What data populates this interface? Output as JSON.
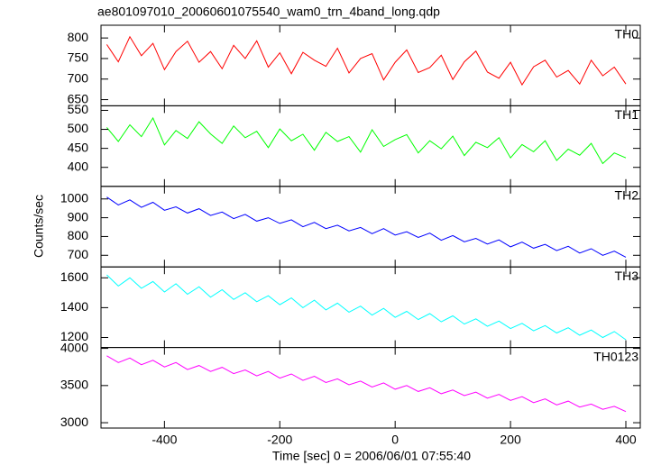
{
  "chart_data": {
    "type": "line",
    "title": "ae801097010_20060601075540_wam0_trn_4band_long.qdp",
    "xlabel": "Time [sec] 0 = 2006/06/01 07:55:40",
    "ylabel": "Counts/sec",
    "xlim": [
      -510,
      425
    ],
    "xticks": [
      -400,
      -200,
      0,
      200,
      400
    ],
    "x": [
      -500,
      -480,
      -460,
      -440,
      -420,
      -400,
      -380,
      -360,
      -340,
      -320,
      -300,
      -280,
      -260,
      -240,
      -220,
      -200,
      -180,
      -160,
      -140,
      -120,
      -100,
      -80,
      -60,
      -40,
      -20,
      0,
      20,
      40,
      60,
      80,
      100,
      120,
      140,
      160,
      180,
      200,
      220,
      240,
      260,
      280,
      300,
      320,
      340,
      360,
      380,
      400
    ],
    "series": [
      {
        "name": "TH0",
        "color": "#ff0000",
        "ylim": [
          635,
          831
        ],
        "yticks": [
          650,
          700,
          750,
          800
        ],
        "values": [
          784,
          742,
          803,
          757,
          787,
          723,
          767,
          792,
          741,
          767,
          725,
          782,
          750,
          793,
          729,
          764,
          713,
          765,
          746,
          731,
          775,
          715,
          750,
          762,
          698,
          741,
          771,
          716,
          728,
          758,
          699,
          742,
          768,
          717,
          702,
          741,
          686,
          730,
          746,
          705,
          721,
          688,
          746,
          708,
          729,
          688
        ]
      },
      {
        "name": "TH1",
        "color": "#00ff00",
        "ylim": [
          350,
          562
        ],
        "yticks": [
          400,
          450,
          500,
          550
        ],
        "values": [
          505,
          468,
          512,
          481,
          530,
          459,
          497,
          476,
          520,
          488,
          463,
          509,
          478,
          495,
          452,
          501,
          470,
          487,
          445,
          492,
          468,
          481,
          440,
          499,
          455,
          473,
          486,
          438,
          470,
          449,
          482,
          431,
          466,
          452,
          478,
          425,
          460,
          441,
          470,
          418,
          448,
          432,
          463,
          410,
          438,
          425
        ]
      },
      {
        "name": "TH2",
        "color": "#0000ff",
        "ylim": [
          638,
          1067
        ],
        "yticks": [
          700,
          800,
          900,
          1000
        ],
        "values": [
          1010,
          968,
          995,
          955,
          982,
          940,
          958,
          925,
          948,
          912,
          930,
          895,
          918,
          882,
          900,
          870,
          889,
          852,
          875,
          842,
          860,
          830,
          848,
          815,
          842,
          808,
          825,
          795,
          818,
          780,
          805,
          772,
          790,
          760,
          782,
          745,
          770,
          738,
          758,
          725,
          748,
          712,
          735,
          700,
          722,
          690
        ]
      },
      {
        "name": "TH3",
        "color": "#00ffff",
        "ylim": [
          1133,
          1673
        ],
        "yticks": [
          1200,
          1400,
          1600
        ],
        "values": [
          1620,
          1545,
          1600,
          1530,
          1575,
          1505,
          1560,
          1490,
          1540,
          1470,
          1520,
          1455,
          1500,
          1440,
          1480,
          1420,
          1465,
          1400,
          1450,
          1385,
          1430,
          1370,
          1410,
          1350,
          1395,
          1335,
          1375,
          1320,
          1360,
          1305,
          1345,
          1290,
          1325,
          1275,
          1310,
          1260,
          1295,
          1245,
          1280,
          1230,
          1265,
          1215,
          1250,
          1200,
          1240,
          1185
        ]
      },
      {
        "name": "TH0123",
        "color": "#ff00ff",
        "ylim": [
          2928,
          4012
        ],
        "yticks": [
          3000,
          3500,
          4000
        ],
        "values": [
          3900,
          3810,
          3870,
          3780,
          3840,
          3750,
          3810,
          3715,
          3770,
          3690,
          3745,
          3660,
          3710,
          3630,
          3690,
          3600,
          3655,
          3570,
          3625,
          3540,
          3590,
          3510,
          3560,
          3480,
          3535,
          3450,
          3500,
          3420,
          3470,
          3390,
          3440,
          3365,
          3410,
          3330,
          3380,
          3300,
          3350,
          3270,
          3320,
          3240,
          3290,
          3210,
          3250,
          3180,
          3220,
          3150
        ]
      }
    ]
  }
}
